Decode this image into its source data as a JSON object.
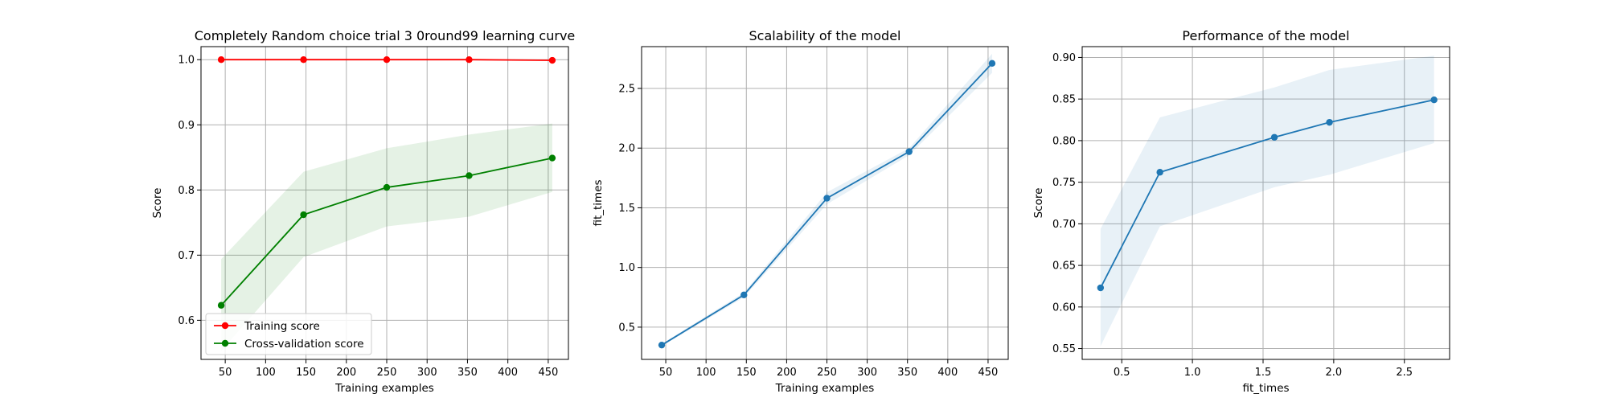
{
  "chart_data": [
    {
      "type": "line",
      "title": "Completely Random choice trial 3 0round99 learning curve",
      "xlabel": "Training examples",
      "ylabel": "Score",
      "xlim": [
        20,
        475
      ],
      "ylim": [
        0.54,
        1.02
      ],
      "xticks": [
        50,
        100,
        150,
        200,
        250,
        300,
        350,
        400,
        450
      ],
      "yticks": [
        0.6,
        0.7,
        0.8,
        0.9,
        1.0
      ],
      "grid": true,
      "legend": "lower-left",
      "x": [
        45,
        147,
        250,
        352,
        455
      ],
      "series": [
        {
          "name": "Training score",
          "color": "#ff0000",
          "values": [
            1.0,
            1.0,
            1.0,
            1.0,
            0.999
          ],
          "band_lower": [
            1.0,
            1.0,
            1.0,
            1.0,
            0.998
          ],
          "band_upper": [
            1.0,
            1.0,
            1.0,
            1.0,
            1.0
          ]
        },
        {
          "name": "Cross-validation score",
          "color": "#008000",
          "values": [
            0.623,
            0.762,
            0.804,
            0.822,
            0.849
          ],
          "band_lower": [
            0.553,
            0.697,
            0.744,
            0.759,
            0.797
          ],
          "band_upper": [
            0.694,
            0.828,
            0.864,
            0.885,
            0.902
          ]
        }
      ]
    },
    {
      "type": "line",
      "title": "Scalability of the model",
      "xlabel": "Training examples",
      "ylabel": "fit_times",
      "xlim": [
        20,
        475
      ],
      "ylim": [
        0.23,
        2.85
      ],
      "xticks": [
        50,
        100,
        150,
        200,
        250,
        300,
        350,
        400,
        450
      ],
      "yticks": [
        0.5,
        1.0,
        1.5,
        2.0,
        2.5
      ],
      "grid": true,
      "x": [
        45,
        147,
        250,
        352,
        455
      ],
      "series": [
        {
          "color": "#1f77b4",
          "values": [
            0.35,
            0.77,
            1.58,
            1.97,
            2.71
          ],
          "band_lower": [
            0.34,
            0.75,
            1.53,
            1.94,
            2.63
          ],
          "band_upper": [
            0.36,
            0.79,
            1.63,
            2.0,
            2.79
          ]
        }
      ]
    },
    {
      "type": "line",
      "title": "Performance of the model",
      "xlabel": "fit_times",
      "ylabel": "Score",
      "xlim": [
        0.22,
        2.82
      ],
      "ylim": [
        0.537,
        0.913
      ],
      "xticks": [
        0.5,
        1.0,
        1.5,
        2.0,
        2.5
      ],
      "yticks": [
        0.55,
        0.6,
        0.65,
        0.7,
        0.75,
        0.8,
        0.85,
        0.9
      ],
      "grid": true,
      "x": [
        0.35,
        0.77,
        1.58,
        1.97,
        2.71
      ],
      "series": [
        {
          "color": "#1f77b4",
          "values": [
            0.623,
            0.762,
            0.804,
            0.822,
            0.849
          ],
          "band_lower": [
            0.553,
            0.697,
            0.744,
            0.759,
            0.797
          ],
          "band_upper": [
            0.694,
            0.828,
            0.864,
            0.885,
            0.902
          ]
        }
      ]
    }
  ]
}
